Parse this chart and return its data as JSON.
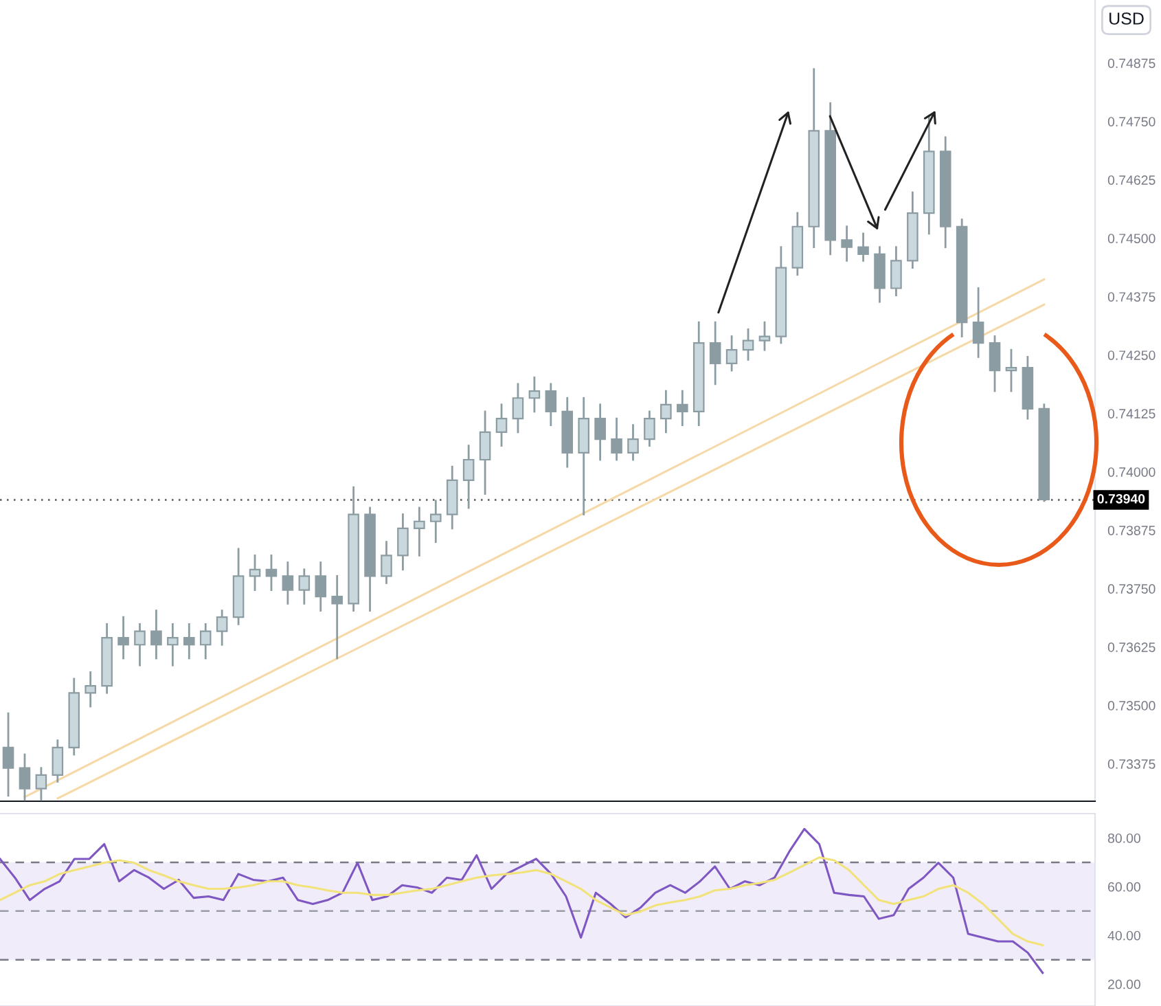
{
  "chart_data": [
    {
      "type": "candlestick",
      "ylabel": "USD",
      "tick_labels": "y",
      "legend": false,
      "grid": false,
      "categories": [
        null,
        null,
        null,
        null,
        null,
        null,
        null,
        null,
        null,
        null,
        null,
        null,
        null,
        null,
        null,
        null,
        null,
        null,
        null,
        null,
        null,
        null,
        null,
        null,
        null,
        null,
        null,
        null,
        null,
        null,
        null,
        null,
        null,
        null,
        null,
        null,
        null,
        null,
        null,
        null,
        null,
        null,
        null,
        null,
        null,
        null,
        null,
        null,
        null,
        null,
        null,
        null,
        null,
        null,
        null,
        null,
        null,
        null,
        null,
        null,
        null,
        null,
        null,
        null
      ],
      "color": "#8c9ca3",
      "ohlc": [
        [
          0.7341,
          0.73483,
          0.73307,
          0.73366
        ],
        [
          0.73366,
          0.73395,
          0.73298,
          0.73322
        ],
        [
          0.73322,
          0.73366,
          0.73298,
          0.73351
        ],
        [
          0.73351,
          0.73425,
          0.73337,
          0.7341
        ],
        [
          0.7341,
          0.73557,
          0.73395,
          0.73527
        ],
        [
          0.73527,
          0.73571,
          0.73498,
          0.73542
        ],
        [
          0.73542,
          0.73674,
          0.73527,
          0.73645
        ],
        [
          0.73645,
          0.73689,
          0.73601,
          0.7363
        ],
        [
          0.7363,
          0.73674,
          0.73586,
          0.73659
        ],
        [
          0.73659,
          0.73703,
          0.73601,
          0.7363
        ],
        [
          0.7363,
          0.73674,
          0.73586,
          0.73645
        ],
        [
          0.73645,
          0.73674,
          0.73601,
          0.7363
        ],
        [
          0.7363,
          0.73674,
          0.73601,
          0.73659
        ],
        [
          0.73659,
          0.73703,
          0.7363,
          0.73689
        ],
        [
          0.73689,
          0.73835,
          0.73674,
          0.73777
        ],
        [
          0.73777,
          0.73821,
          0.73747,
          0.73791
        ],
        [
          0.73791,
          0.73821,
          0.73747,
          0.73777
        ],
        [
          0.73777,
          0.73806,
          0.73718,
          0.73747
        ],
        [
          0.73747,
          0.73791,
          0.73718,
          0.73777
        ],
        [
          0.73777,
          0.73806,
          0.73703,
          0.73733
        ],
        [
          0.73733,
          0.73777,
          0.73601,
          0.73718
        ],
        [
          0.73718,
          0.73967,
          0.73703,
          0.73909
        ],
        [
          0.73909,
          0.73923,
          0.73703,
          0.73777
        ],
        [
          0.73777,
          0.7385,
          0.73762,
          0.73821
        ],
        [
          0.73821,
          0.73909,
          0.73791,
          0.73879
        ],
        [
          0.73879,
          0.73923,
          0.73821,
          0.73894
        ],
        [
          0.73894,
          0.73938,
          0.7385,
          0.73909
        ],
        [
          0.73909,
          0.74011,
          0.73879,
          0.73982
        ],
        [
          0.73982,
          0.74056,
          0.73923,
          0.74026
        ],
        [
          0.74026,
          0.74129,
          0.73953,
          0.74085
        ],
        [
          0.74085,
          0.74144,
          0.74056,
          0.74114
        ],
        [
          0.74114,
          0.74188,
          0.74085,
          0.74158
        ],
        [
          0.74158,
          0.74202,
          0.74129,
          0.74173
        ],
        [
          0.74173,
          0.74188,
          0.741,
          0.74129
        ],
        [
          0.74129,
          0.74158,
          0.74011,
          0.74041
        ],
        [
          0.74041,
          0.74158,
          0.73909,
          0.74114
        ],
        [
          0.74114,
          0.74144,
          0.74026,
          0.7407
        ],
        [
          0.7407,
          0.74114,
          0.74026,
          0.74041
        ],
        [
          0.74041,
          0.741,
          0.74026,
          0.7407
        ],
        [
          0.7407,
          0.74129,
          0.74056,
          0.74114
        ],
        [
          0.74114,
          0.74173,
          0.74085,
          0.74144
        ],
        [
          0.74144,
          0.74173,
          0.741,
          0.74129
        ],
        [
          0.74129,
          0.7432,
          0.741,
          0.74276
        ],
        [
          0.74276,
          0.7432,
          0.74188,
          0.74232
        ],
        [
          0.74232,
          0.7429,
          0.74217,
          0.74261
        ],
        [
          0.74261,
          0.74305,
          0.7424,
          0.74281
        ],
        [
          0.74281,
          0.7432,
          0.74261,
          0.7429
        ],
        [
          0.7429,
          0.74481,
          0.74276,
          0.74437
        ],
        [
          0.74437,
          0.74554,
          0.74422,
          0.74525
        ],
        [
          0.74525,
          0.74862,
          0.74481,
          0.7473
        ],
        [
          0.7473,
          0.74789,
          0.74466,
          0.74496
        ],
        [
          0.74496,
          0.74525,
          0.74452,
          0.74481
        ],
        [
          0.74481,
          0.7451,
          0.74452,
          0.74466
        ],
        [
          0.74466,
          0.74481,
          0.74364,
          0.74393
        ],
        [
          0.74393,
          0.74481,
          0.74378,
          0.74452
        ],
        [
          0.74452,
          0.74598,
          0.74437,
          0.74554
        ],
        [
          0.74554,
          0.7476,
          0.7451,
          0.74686
        ],
        [
          0.74686,
          0.74716,
          0.74481,
          0.74525
        ],
        [
          0.74525,
          0.7454,
          0.7429,
          0.7432
        ],
        [
          0.7432,
          0.74393,
          0.74246,
          0.74276
        ],
        [
          0.74276,
          0.7429,
          0.74173,
          0.74217
        ],
        [
          0.74217,
          0.74261,
          0.74173,
          0.74223
        ],
        [
          0.74223,
          0.74246,
          0.74114,
          0.74135
        ],
        [
          0.74135,
          0.74144,
          0.73938,
          0.73941
        ]
      ],
      "series": [
        {
          "type": "line",
          "values": [
            null,
            0.73304,
            null,
            null,
            null,
            null,
            null,
            null,
            null,
            null,
            null,
            null,
            null,
            null,
            null,
            null,
            null,
            null,
            null,
            null,
            null,
            null,
            null,
            null,
            null,
            null,
            null,
            null,
            null,
            null,
            null,
            null,
            null,
            null,
            null,
            null,
            null,
            null,
            null,
            null,
            null,
            null,
            null,
            null,
            null,
            null,
            null,
            null,
            null,
            null,
            null,
            null,
            null,
            null,
            null,
            null,
            null,
            null,
            null,
            null,
            null,
            null,
            null,
            0.74412
          ],
          "color": "#f5d9a8"
        },
        {
          "type": "line",
          "values": [
            null,
            null,
            null,
            0.73301,
            null,
            null,
            null,
            null,
            null,
            null,
            null,
            null,
            null,
            null,
            null,
            null,
            null,
            null,
            null,
            null,
            null,
            null,
            null,
            null,
            null,
            null,
            null,
            null,
            null,
            null,
            null,
            null,
            null,
            null,
            null,
            null,
            null,
            null,
            null,
            null,
            null,
            null,
            null,
            null,
            null,
            null,
            null,
            null,
            null,
            null,
            null,
            null,
            null,
            null,
            null,
            null,
            null,
            null,
            null,
            null,
            null,
            null,
            null,
            0.74358
          ],
          "color": "#f5d9a8"
        }
      ],
      "ylim": [
        0.73295,
        0.7501
      ],
      "yticks": [
        {
          "value": 0.73375,
          "label": "0.73375"
        },
        {
          "value": 0.735,
          "label": "0.73500"
        },
        {
          "value": 0.73625,
          "label": "0.73625"
        },
        {
          "value": 0.7375,
          "label": "0.73750"
        },
        {
          "value": 0.73875,
          "label": "0.73875"
        },
        {
          "value": 0.74,
          "label": "0.74000"
        },
        {
          "value": 0.74125,
          "label": "0.74125"
        },
        {
          "value": 0.7425,
          "label": "0.74250"
        },
        {
          "value": 0.74375,
          "label": "0.74375"
        },
        {
          "value": 0.745,
          "label": "0.74500"
        },
        {
          "value": 0.74625,
          "label": "0.74625"
        },
        {
          "value": 0.7475,
          "label": "0.74750"
        },
        {
          "value": 0.74875,
          "label": "0.74875"
        }
      ],
      "ref_lines": [
        {
          "axis": "y",
          "value": 0.7394,
          "label": "0.73940",
          "color": "#555555",
          "line_style": "dotted"
        }
      ]
    },
    {
      "type": "line",
      "tick_labels": "y",
      "legend": false,
      "grid": false,
      "categories": [
        null,
        null,
        null,
        null,
        null,
        null,
        null,
        null,
        null,
        null,
        null,
        null,
        null,
        null,
        null,
        null,
        null,
        null,
        null,
        null,
        null,
        null,
        null,
        null,
        null,
        null,
        null,
        null,
        null,
        null,
        null,
        null,
        null,
        null,
        null,
        null,
        null,
        null,
        null,
        null,
        null,
        null,
        null,
        null,
        null,
        null,
        null,
        null,
        null,
        null,
        null,
        null,
        null,
        null,
        null,
        null,
        null,
        null,
        null,
        null,
        null,
        null,
        null,
        null,
        null,
        null,
        null,
        null,
        null,
        null,
        null
      ],
      "series": [
        {
          "color": "#7e57c2",
          "values": [
            71.4,
            63.7,
            54.5,
            59.1,
            62.2,
            71.4,
            71.4,
            77.5,
            62.2,
            66.8,
            63.7,
            59.1,
            62.8,
            55.4,
            56,
            54.5,
            65.2,
            62.8,
            62.2,
            63.7,
            54.5,
            52.9,
            54.5,
            57.5,
            69.8,
            54.5,
            56,
            60.6,
            59.7,
            57.5,
            63.7,
            62.8,
            72.9,
            59.1,
            65.2,
            68.3,
            71.4,
            65.2,
            56,
            39.1,
            57.5,
            52.9,
            47.4,
            51.4,
            57.5,
            60.6,
            57.5,
            62.2,
            68.3,
            59.1,
            62.2,
            60.6,
            63.7,
            74.5,
            83.7,
            77.5,
            57.5,
            56.6,
            56,
            46.8,
            48.3,
            59.1,
            63.7,
            69.8,
            63.7,
            40.6,
            39.1,
            37.5,
            37.5,
            32.9,
            24.6
          ]
        },
        {
          "color": "#f2e27a",
          "values": [
            54.5,
            57.5,
            60.6,
            62.2,
            65.2,
            66.8,
            68.3,
            69.8,
            70.8,
            69.8,
            66.8,
            64.6,
            62.2,
            60.6,
            59.1,
            59.1,
            59.7,
            60.6,
            62.2,
            62.2,
            60.6,
            59.7,
            58.5,
            57.5,
            57.5,
            56.6,
            56.6,
            57.5,
            58.5,
            59.1,
            60.6,
            62.2,
            63.7,
            64.6,
            65.2,
            65.8,
            66.8,
            65.2,
            62.2,
            59.1,
            54.5,
            51.4,
            48.3,
            49.8,
            52.3,
            53.5,
            54.5,
            56,
            58.5,
            59.1,
            60.6,
            61.5,
            62.8,
            65.8,
            68.9,
            72,
            70.8,
            66.8,
            60.6,
            54.5,
            52.9,
            54.5,
            56,
            59.1,
            60.6,
            57.5,
            52.9,
            46.8,
            40.6,
            37.5,
            36
          ]
        }
      ],
      "ylim": [
        11,
        90
      ],
      "yticks": [
        {
          "value": 20,
          "label": "20.00"
        },
        {
          "value": 40,
          "label": "40.00"
        },
        {
          "value": 60,
          "label": "60.00"
        },
        {
          "value": 80,
          "label": "80.00"
        }
      ],
      "bands": [
        {
          "axis": "y",
          "from": 30,
          "to": 70,
          "color": "#f0ecf9"
        }
      ],
      "ref_lines": [
        {
          "axis": "y",
          "value": 70,
          "color": "#787b86",
          "line_style": "dashed"
        },
        {
          "axis": "y",
          "value": 50,
          "color": "#9a9ca6",
          "line_style": "dashed"
        },
        {
          "axis": "y",
          "value": 30,
          "color": "#787b86",
          "line_style": "dashed"
        }
      ]
    }
  ]
}
